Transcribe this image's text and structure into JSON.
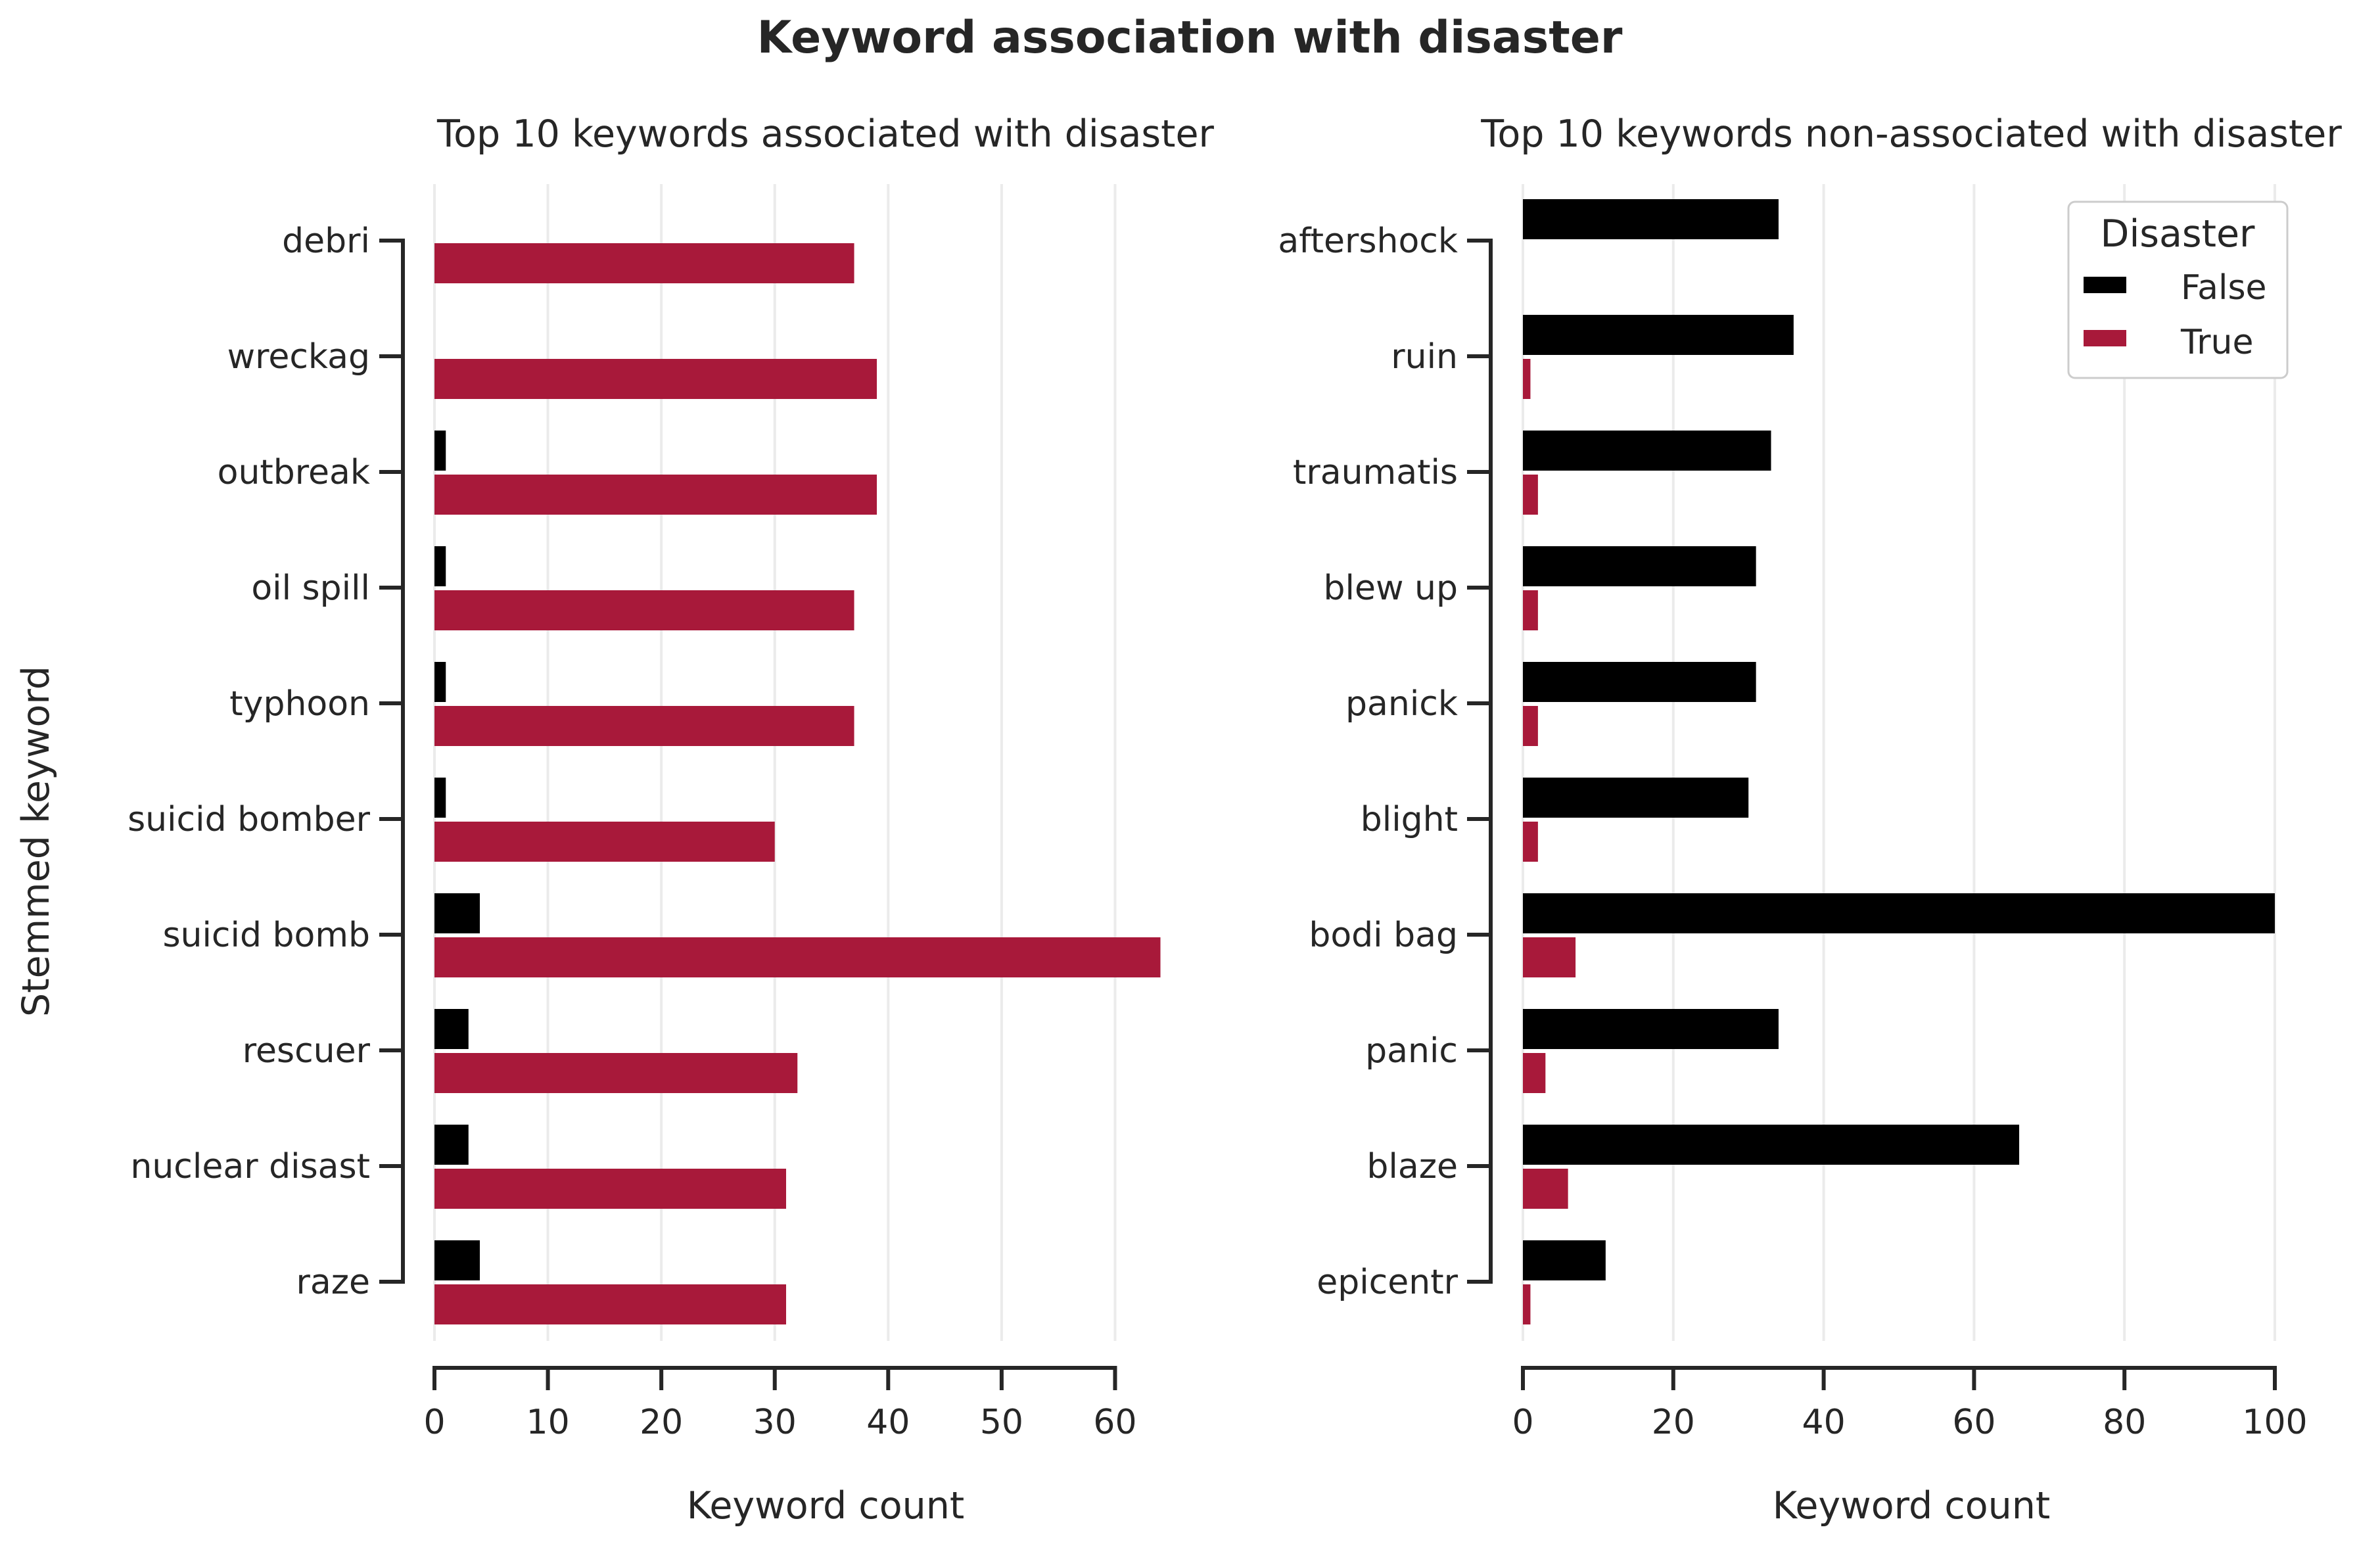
{
  "figure": {
    "title": "Keyword association with disaster"
  },
  "colors": {
    "False": "#000000",
    "True": "#a8193a",
    "grid": "#ebebeb",
    "axis": "#262626"
  },
  "legend": {
    "title": "Disaster",
    "placement": "top-right of right panel",
    "entries": [
      "False",
      "True"
    ]
  },
  "chart_data": [
    {
      "type": "bar",
      "orientation": "horizontal",
      "title": "Top 10 keywords associated with disaster",
      "xlabel": "Keyword count",
      "ylabel": "Stemmed keyword",
      "xlim": [
        0,
        62
      ],
      "xticks": [
        0,
        10,
        20,
        30,
        40,
        50,
        60
      ],
      "grid": "x",
      "categories": [
        "debri",
        "wreckag",
        "outbreak",
        "oil spill",
        "typhoon",
        "suicid bomber",
        "suicid bomb",
        "rescuer",
        "nuclear disast",
        "raze"
      ],
      "series": [
        {
          "name": "False",
          "values": [
            0,
            0,
            1,
            1,
            1,
            1,
            4,
            3,
            3,
            4
          ]
        },
        {
          "name": "True",
          "values": [
            37,
            39,
            39,
            37,
            37,
            30,
            64,
            32,
            31,
            31
          ]
        }
      ]
    },
    {
      "type": "bar",
      "orientation": "horizontal",
      "title": "Top 10 keywords non-associated with disaster",
      "xlabel": "Keyword count",
      "ylabel": "",
      "xlim": [
        0,
        100
      ],
      "xticks": [
        0,
        20,
        40,
        60,
        80,
        100
      ],
      "grid": "x",
      "categories": [
        "aftershock",
        "ruin",
        "traumatis",
        "blew up",
        "panick",
        "blight",
        "bodi bag",
        "panic",
        "blaze",
        "epicentr"
      ],
      "series": [
        {
          "name": "False",
          "values": [
            34,
            36,
            33,
            31,
            31,
            30,
            100,
            34,
            66,
            11
          ]
        },
        {
          "name": "True",
          "values": [
            0,
            1,
            2,
            2,
            2,
            2,
            7,
            3,
            6,
            1
          ]
        }
      ]
    }
  ]
}
